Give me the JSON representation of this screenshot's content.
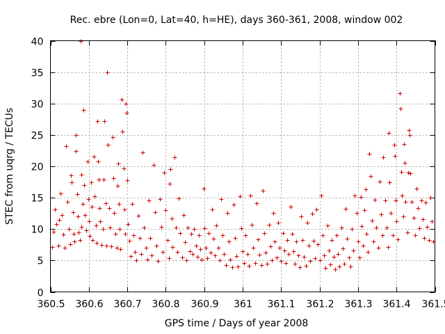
{
  "chart_data": {
    "type": "scatter",
    "title": "Rec. ebre (Lon=0, Lat=40, h=HE), days 360-361, 2008, window 002",
    "xlabel": "GPS time / Days of year 2008",
    "ylabel": "STEC from uqrg / TECUs",
    "xlim": [
      360.5,
      361.5
    ],
    "ylim": [
      0,
      40
    ],
    "xticks": [
      360.5,
      360.6,
      360.7,
      360.8,
      360.9,
      361.0,
      361.1,
      361.2,
      361.3,
      361.4,
      361.5
    ],
    "xtick_labels": [
      "360.5",
      "360.6",
      "360.7",
      "360.8",
      "360.9",
      "361",
      "361.1",
      "361.2",
      "361.3",
      "361.4",
      "361.5"
    ],
    "yticks": [
      0,
      5,
      10,
      15,
      20,
      25,
      30,
      35,
      40
    ],
    "ytick_labels": [
      "0",
      "5",
      "10",
      "15",
      "20",
      "25",
      "30",
      "35",
      "40"
    ],
    "grid": true,
    "marker": "+",
    "color": "#cc0000",
    "series": [
      {
        "name": "STEC",
        "points": [
          [
            360.505,
            7.2
          ],
          [
            360.508,
            9.6
          ],
          [
            360.512,
            13.1
          ],
          [
            360.515,
            10.8
          ],
          [
            360.52,
            7.4
          ],
          [
            360.523,
            11.5
          ],
          [
            360.527,
            15.7
          ],
          [
            360.53,
            12.2
          ],
          [
            360.534,
            9.1
          ],
          [
            360.537,
            7.0
          ],
          [
            360.541,
            23.2
          ],
          [
            360.545,
            14.4
          ],
          [
            360.548,
            10.0
          ],
          [
            360.551,
            7.6
          ],
          [
            360.553,
            18.6
          ],
          [
            360.556,
            17.4
          ],
          [
            360.558,
            12.7
          ],
          [
            360.561,
            9.2
          ],
          [
            360.563,
            8.0
          ],
          [
            360.566,
            25.0
          ],
          [
            360.566,
            22.4
          ],
          [
            360.569,
            15.6
          ],
          [
            360.571,
            12.0
          ],
          [
            360.574,
            9.5
          ],
          [
            360.576,
            8.3
          ],
          [
            360.578,
            40.0
          ],
          [
            360.58,
            18.7
          ],
          [
            360.581,
            10.4
          ],
          [
            360.584,
            14.0
          ],
          [
            360.586,
            29.0
          ],
          [
            360.588,
            17.0
          ],
          [
            360.59,
            12.2
          ],
          [
            360.593,
            9.8
          ],
          [
            360.596,
            20.8
          ],
          [
            360.598,
            14.8
          ],
          [
            360.6,
            11.3
          ],
          [
            360.602,
            8.9
          ],
          [
            360.605,
            17.4
          ],
          [
            360.607,
            13.6
          ],
          [
            360.61,
            8.3
          ],
          [
            360.613,
            21.6
          ],
          [
            360.615,
            15.2
          ],
          [
            360.618,
            10.6
          ],
          [
            360.62,
            7.8
          ],
          [
            360.622,
            27.2
          ],
          [
            360.624,
            20.8
          ],
          [
            360.626,
            17.9
          ],
          [
            360.628,
            13.3
          ],
          [
            360.63,
            11.2
          ],
          [
            360.633,
            7.5
          ],
          [
            360.636,
            10.0
          ],
          [
            360.639,
            17.9
          ],
          [
            360.641,
            27.2
          ],
          [
            360.643,
            14.1
          ],
          [
            360.645,
            7.4
          ],
          [
            360.648,
            35.0
          ],
          [
            360.649,
            23.4
          ],
          [
            360.652,
            13.3
          ],
          [
            360.655,
            10.2
          ],
          [
            360.658,
            7.3
          ],
          [
            360.661,
            24.6
          ],
          [
            360.663,
            18.1
          ],
          [
            360.666,
            12.6
          ],
          [
            360.669,
            9.2
          ],
          [
            360.672,
            7.0
          ],
          [
            360.674,
            16.9
          ],
          [
            360.676,
            20.4
          ],
          [
            360.678,
            14.0
          ],
          [
            360.68,
            10.0
          ],
          [
            360.682,
            6.8
          ],
          [
            360.685,
            30.6
          ],
          [
            360.688,
            25.5
          ],
          [
            360.69,
            19.7
          ],
          [
            360.692,
            13.1
          ],
          [
            360.695,
            9.3
          ],
          [
            360.697,
            30.0
          ],
          [
            360.698,
            28.5
          ],
          [
            360.7,
            17.8
          ],
          [
            360.702,
            10.8
          ],
          [
            360.705,
            8.1
          ],
          [
            360.708,
            5.7
          ],
          [
            360.712,
            14.0
          ],
          [
            360.716,
            9.0
          ],
          [
            360.72,
            6.4
          ],
          [
            360.724,
            5.0
          ],
          [
            360.728,
            12.1
          ],
          [
            360.732,
            8.6
          ],
          [
            360.736,
            6.0
          ],
          [
            360.74,
            22.2
          ],
          [
            360.744,
            10.3
          ],
          [
            360.748,
            7.0
          ],
          [
            360.752,
            5.1
          ],
          [
            360.756,
            14.6
          ],
          [
            360.76,
            8.6
          ],
          [
            360.764,
            5.8
          ],
          [
            360.768,
            20.2
          ],
          [
            360.772,
            12.7
          ],
          [
            360.776,
            7.4
          ],
          [
            360.78,
            4.9
          ],
          [
            360.784,
            14.8
          ],
          [
            360.788,
            10.4
          ],
          [
            360.792,
            6.4
          ],
          [
            360.796,
            19.0
          ],
          [
            360.8,
            13.0
          ],
          [
            360.804,
            8.2
          ],
          [
            360.808,
            5.4
          ],
          [
            360.81,
            17.2
          ],
          [
            360.812,
            19.6
          ],
          [
            360.815,
            11.7
          ],
          [
            360.818,
            7.1
          ],
          [
            360.822,
            21.4
          ],
          [
            360.826,
            10.3
          ],
          [
            360.83,
            6.4
          ],
          [
            360.834,
            14.9
          ],
          [
            360.838,
            9.4
          ],
          [
            360.842,
            5.5
          ],
          [
            360.846,
            12.2
          ],
          [
            360.85,
            7.9
          ],
          [
            360.854,
            5.0
          ],
          [
            360.858,
            10.2
          ],
          [
            360.862,
            6.5
          ],
          [
            360.866,
            9.2
          ],
          [
            360.87,
            6.0
          ],
          [
            360.874,
            10.0
          ],
          [
            360.878,
            7.4
          ],
          [
            360.882,
            5.6
          ],
          [
            360.886,
            9.0
          ],
          [
            360.89,
            6.8
          ],
          [
            360.894,
            5.2
          ],
          [
            360.898,
            16.4
          ],
          [
            360.9,
            10.1
          ],
          [
            360.904,
            7.0
          ],
          [
            360.908,
            5.4
          ],
          [
            360.912,
            9.4
          ],
          [
            360.916,
            6.3
          ],
          [
            360.92,
            13.1
          ],
          [
            360.924,
            8.5
          ],
          [
            360.928,
            5.8
          ],
          [
            360.932,
            10.6
          ],
          [
            360.936,
            7.0
          ],
          [
            360.94,
            5.0
          ],
          [
            360.944,
            14.8
          ],
          [
            360.948,
            9.0
          ],
          [
            360.952,
            6.0
          ],
          [
            360.956,
            4.3
          ],
          [
            360.96,
            12.6
          ],
          [
            360.964,
            8.0
          ],
          [
            360.968,
            5.2
          ],
          [
            360.972,
            3.9
          ],
          [
            360.976,
            13.9
          ],
          [
            360.98,
            8.6
          ],
          [
            360.984,
            5.7
          ],
          [
            360.988,
            4.0
          ],
          [
            360.992,
            15.2
          ],
          [
            360.996,
            10.1
          ],
          [
            361.0,
            6.5
          ],
          [
            361.004,
            4.6
          ],
          [
            361.008,
            9.0
          ],
          [
            361.012,
            6.0
          ],
          [
            361.016,
            4.2
          ],
          [
            361.02,
            15.3
          ],
          [
            361.024,
            10.7
          ],
          [
            361.028,
            7.0
          ],
          [
            361.032,
            4.6
          ],
          [
            361.036,
            14.1
          ],
          [
            361.04,
            8.4
          ],
          [
            361.044,
            5.9
          ],
          [
            361.048,
            4.3
          ],
          [
            361.052,
            16.1
          ],
          [
            361.056,
            9.4
          ],
          [
            361.06,
            6.3
          ],
          [
            361.064,
            4.5
          ],
          [
            361.068,
            10.7
          ],
          [
            361.072,
            7.3
          ],
          [
            361.076,
            5.0
          ],
          [
            361.08,
            12.6
          ],
          [
            361.084,
            8.0
          ],
          [
            361.088,
            5.5
          ],
          [
            361.092,
            11.0
          ],
          [
            361.096,
            7.0
          ],
          [
            361.1,
            4.9
          ],
          [
            361.104,
            9.4
          ],
          [
            361.108,
            6.6
          ],
          [
            361.112,
            4.6
          ],
          [
            361.116,
            8.2
          ],
          [
            361.12,
            6.0
          ],
          [
            361.124,
            13.6
          ],
          [
            361.128,
            9.3
          ],
          [
            361.132,
            6.5
          ],
          [
            361.136,
            4.5
          ],
          [
            361.14,
            8.0
          ],
          [
            361.144,
            5.8
          ],
          [
            361.148,
            3.9
          ],
          [
            361.152,
            12.0
          ],
          [
            361.156,
            8.3
          ],
          [
            361.16,
            5.6
          ],
          [
            361.164,
            4.2
          ],
          [
            361.168,
            11.0
          ],
          [
            361.172,
            7.4
          ],
          [
            361.176,
            4.9
          ],
          [
            361.18,
            12.5
          ],
          [
            361.184,
            8.1
          ],
          [
            361.188,
            5.4
          ],
          [
            361.192,
            13.1
          ],
          [
            361.196,
            7.6
          ],
          [
            361.2,
            5.0
          ],
          [
            361.204,
            15.3
          ],
          [
            361.208,
            9.0
          ],
          [
            361.212,
            5.8
          ],
          [
            361.216,
            3.8
          ],
          [
            361.22,
            10.6
          ],
          [
            361.224,
            6.6
          ],
          [
            361.228,
            4.4
          ],
          [
            361.232,
            8.3
          ],
          [
            361.236,
            5.6
          ],
          [
            361.24,
            3.6
          ],
          [
            361.244,
            9.0
          ],
          [
            361.248,
            6.0
          ],
          [
            361.252,
            4.0
          ],
          [
            361.256,
            10.2
          ],
          [
            361.26,
            6.9
          ],
          [
            361.264,
            4.5
          ],
          [
            361.268,
            13.2
          ],
          [
            361.272,
            8.5
          ],
          [
            361.276,
            5.5
          ],
          [
            361.28,
            4.0
          ],
          [
            361.284,
            10.0
          ],
          [
            361.288,
            6.6
          ],
          [
            361.292,
            15.4
          ],
          [
            361.296,
            12.6
          ],
          [
            361.3,
            8.0
          ],
          [
            361.304,
            5.5
          ],
          [
            361.308,
            15.1
          ],
          [
            361.31,
            10.5
          ],
          [
            361.312,
            7.4
          ],
          [
            361.316,
            13.0
          ],
          [
            361.32,
            16.3
          ],
          [
            361.322,
            9.2
          ],
          [
            361.326,
            6.4
          ],
          [
            361.33,
            22.0
          ],
          [
            361.333,
            18.4
          ],
          [
            361.336,
            11.4
          ],
          [
            361.34,
            8.0
          ],
          [
            361.344,
            14.7
          ],
          [
            361.348,
            10.2
          ],
          [
            361.352,
            7.0
          ],
          [
            361.356,
            17.6
          ],
          [
            361.36,
            12.4
          ],
          [
            361.364,
            9.0
          ],
          [
            361.366,
            21.4
          ],
          [
            361.37,
            14.6
          ],
          [
            361.374,
            10.2
          ],
          [
            361.378,
            7.2
          ],
          [
            361.38,
            25.3
          ],
          [
            361.382,
            17.5
          ],
          [
            361.386,
            12.6
          ],
          [
            361.39,
            9.0
          ],
          [
            361.394,
            23.4
          ],
          [
            361.396,
            21.7
          ],
          [
            361.398,
            14.6
          ],
          [
            361.4,
            11.2
          ],
          [
            361.404,
            8.4
          ],
          [
            361.408,
            31.6
          ],
          [
            361.41,
            29.2
          ],
          [
            361.412,
            19.1
          ],
          [
            361.414,
            15.3
          ],
          [
            361.418,
            12.0
          ],
          [
            361.42,
            23.5
          ],
          [
            361.422,
            20.6
          ],
          [
            361.424,
            14.4
          ],
          [
            361.428,
            9.5
          ],
          [
            361.43,
            19.0
          ],
          [
            361.432,
            25.8
          ],
          [
            361.434,
            25.0
          ],
          [
            361.436,
            18.9
          ],
          [
            361.44,
            14.4
          ],
          [
            361.444,
            11.8
          ],
          [
            361.448,
            9.0
          ],
          [
            361.452,
            16.4
          ],
          [
            361.456,
            13.3
          ],
          [
            361.46,
            10.1
          ],
          [
            361.464,
            14.6
          ],
          [
            361.468,
            11.6
          ],
          [
            361.472,
            8.6
          ],
          [
            361.476,
            14.2
          ],
          [
            361.48,
            10.4
          ],
          [
            361.484,
            8.2
          ],
          [
            361.488,
            15.0
          ],
          [
            361.492,
            11.2
          ],
          [
            361.496,
            8.0
          ]
        ]
      }
    ]
  }
}
